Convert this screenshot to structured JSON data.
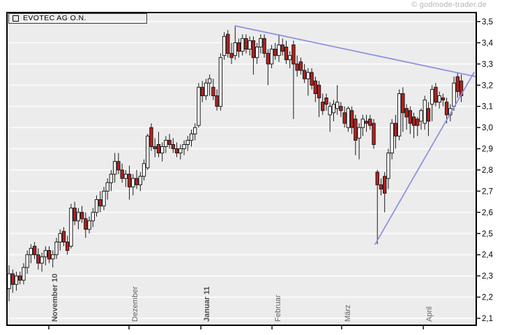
{
  "watermark": "© godmode-trader.de",
  "legend": {
    "title": "EVOTEC AG O.N."
  },
  "colors": {
    "plot_bg": "#ececec",
    "grid": "#fafafa",
    "border": "#000000",
    "up_fill": "#ffffff",
    "down_fill": "#b5211e",
    "candle_stroke": "#1a1a1a",
    "trendline": "#8f92e0",
    "month_label": "#666666",
    "month_label_bold": "#4d4d4d",
    "y_label": "#000000",
    "watermark": "#b6b6b6"
  },
  "chart_data": {
    "type": "candlestick",
    "title": "EVOTEC AG O.N.",
    "source": "godmode-trader.de",
    "y_axis": {
      "position": "right",
      "min": 2.1,
      "max": 3.5,
      "tick_step": 0.1,
      "labels": [
        "3,5",
        "3,4",
        "3,3",
        "3,2",
        "3,1",
        "3,0",
        "2,9",
        "2,8",
        "2,7",
        "2,6",
        "2,5",
        "2,4",
        "2,3",
        "2,2",
        "2,1"
      ]
    },
    "x_axis": {
      "months": [
        {
          "label": "November 10",
          "bold": true,
          "index": 10.9
        },
        {
          "label": "Dezember",
          "bold": false,
          "index": 32.9
        },
        {
          "label": "Januar 11",
          "bold": true,
          "index": 52.6
        },
        {
          "label": "Februar",
          "bold": false,
          "index": 72.1
        },
        {
          "label": "März",
          "bold": false,
          "index": 91.2
        },
        {
          "label": "April",
          "bold": false,
          "index": 113.6
        }
      ]
    },
    "grid": true,
    "candles": [
      [
        2.24,
        2.35,
        2.18,
        2.31
      ],
      [
        2.31,
        2.33,
        2.22,
        2.26
      ],
      [
        2.26,
        2.32,
        2.23,
        2.3
      ],
      [
        2.3,
        2.32,
        2.26,
        2.28
      ],
      [
        2.28,
        2.36,
        2.26,
        2.34
      ],
      [
        2.34,
        2.42,
        2.31,
        2.4
      ],
      [
        2.4,
        2.45,
        2.36,
        2.43
      ],
      [
        2.44,
        2.46,
        2.38,
        2.4
      ],
      [
        2.4,
        2.43,
        2.33,
        2.36
      ],
      [
        2.36,
        2.41,
        2.32,
        2.39
      ],
      [
        2.39,
        2.44,
        2.35,
        2.42
      ],
      [
        2.42,
        2.44,
        2.36,
        2.38
      ],
      [
        2.38,
        2.42,
        2.34,
        2.4
      ],
      [
        2.4,
        2.48,
        2.38,
        2.46
      ],
      [
        2.46,
        2.52,
        2.42,
        2.5
      ],
      [
        2.51,
        2.53,
        2.44,
        2.46
      ],
      [
        2.46,
        2.49,
        2.4,
        2.42
      ],
      [
        2.44,
        2.64,
        2.43,
        2.62
      ],
      [
        2.62,
        2.65,
        2.54,
        2.56
      ],
      [
        2.56,
        2.62,
        2.52,
        2.6
      ],
      [
        2.6,
        2.63,
        2.55,
        2.57
      ],
      [
        2.57,
        2.6,
        2.48,
        2.52
      ],
      [
        2.52,
        2.58,
        2.5,
        2.56
      ],
      [
        2.56,
        2.62,
        2.53,
        2.6
      ],
      [
        2.6,
        2.68,
        2.58,
        2.66
      ],
      [
        2.66,
        2.7,
        2.6,
        2.63
      ],
      [
        2.63,
        2.72,
        2.61,
        2.7
      ],
      [
        2.7,
        2.76,
        2.66,
        2.74
      ],
      [
        2.74,
        2.8,
        2.7,
        2.78
      ],
      [
        2.78,
        2.88,
        2.74,
        2.84
      ],
      [
        2.84,
        2.88,
        2.78,
        2.8
      ],
      [
        2.8,
        2.83,
        2.74,
        2.76
      ],
      [
        2.76,
        2.8,
        2.72,
        2.78
      ],
      [
        2.78,
        2.82,
        2.66,
        2.72
      ],
      [
        2.72,
        2.78,
        2.68,
        2.76
      ],
      [
        2.76,
        2.8,
        2.71,
        2.73
      ],
      [
        2.73,
        2.79,
        2.7,
        2.77
      ],
      [
        2.77,
        2.85,
        2.75,
        2.83
      ],
      [
        2.81,
        2.97,
        2.8,
        2.96
      ],
      [
        3.0,
        3.02,
        2.89,
        2.91
      ],
      [
        2.91,
        2.95,
        2.86,
        2.9
      ],
      [
        2.92,
        2.98,
        2.86,
        2.88
      ],
      [
        2.88,
        2.93,
        2.84,
        2.91
      ],
      [
        2.91,
        2.96,
        2.88,
        2.94
      ],
      [
        2.94,
        2.97,
        2.9,
        2.92
      ],
      [
        2.92,
        2.95,
        2.88,
        2.9
      ],
      [
        2.9,
        2.93,
        2.86,
        2.88
      ],
      [
        2.88,
        2.92,
        2.85,
        2.9
      ],
      [
        2.9,
        2.94,
        2.87,
        2.92
      ],
      [
        2.92,
        2.96,
        2.89,
        2.94
      ],
      [
        2.94,
        2.99,
        2.91,
        2.97
      ],
      [
        2.97,
        3.02,
        2.94,
        3.0
      ],
      [
        3.01,
        3.21,
        3.0,
        3.19
      ],
      [
        3.19,
        3.22,
        3.12,
        3.15
      ],
      [
        3.15,
        3.23,
        3.13,
        3.21
      ],
      [
        3.21,
        3.25,
        3.15,
        3.23
      ],
      [
        3.19,
        3.23,
        3.13,
        3.15
      ],
      [
        3.15,
        3.18,
        3.08,
        3.1
      ],
      [
        3.1,
        3.35,
        3.08,
        3.33
      ],
      [
        3.34,
        3.45,
        3.32,
        3.43
      ],
      [
        3.44,
        3.46,
        3.33,
        3.35
      ],
      [
        3.35,
        3.4,
        3.3,
        3.33
      ],
      [
        3.34,
        3.48,
        3.32,
        3.4
      ],
      [
        3.4,
        3.42,
        3.33,
        3.36
      ],
      [
        3.36,
        3.44,
        3.34,
        3.42
      ],
      [
        3.42,
        3.44,
        3.35,
        3.37
      ],
      [
        3.37,
        3.43,
        3.34,
        3.41
      ],
      [
        3.41,
        3.43,
        3.25,
        3.33
      ],
      [
        3.33,
        3.4,
        3.3,
        3.38
      ],
      [
        3.38,
        3.44,
        3.35,
        3.42
      ],
      [
        3.42,
        3.44,
        3.33,
        3.35
      ],
      [
        3.35,
        3.37,
        3.2,
        3.3
      ],
      [
        3.3,
        3.39,
        3.28,
        3.37
      ],
      [
        3.37,
        3.4,
        3.32,
        3.34
      ],
      [
        3.34,
        3.44,
        3.31,
        3.39
      ],
      [
        3.39,
        3.42,
        3.34,
        3.36
      ],
      [
        3.38,
        3.41,
        3.3,
        3.32
      ],
      [
        3.32,
        3.36,
        3.28,
        3.34
      ],
      [
        3.39,
        3.41,
        3.04,
        3.3
      ],
      [
        3.3,
        3.34,
        3.24,
        3.27
      ],
      [
        3.31,
        3.33,
        3.25,
        3.27
      ],
      [
        3.27,
        3.3,
        3.21,
        3.23
      ],
      [
        3.23,
        3.28,
        3.15,
        3.26
      ],
      [
        3.26,
        3.28,
        3.18,
        3.2
      ],
      [
        3.22,
        3.24,
        3.12,
        3.16
      ],
      [
        3.2,
        3.22,
        3.05,
        3.14
      ],
      [
        3.12,
        3.16,
        3.06,
        3.08
      ],
      [
        3.14,
        3.16,
        3.08,
        3.11
      ],
      [
        3.06,
        3.12,
        2.98,
        3.1
      ],
      [
        3.07,
        3.13,
        3.03,
        3.11
      ],
      [
        3.09,
        3.2,
        3.06,
        3.12
      ],
      [
        3.1,
        3.12,
        3.05,
        3.08
      ],
      [
        3.07,
        3.1,
        3.0,
        3.02
      ],
      [
        3.0,
        3.1,
        2.98,
        3.09
      ],
      [
        3.08,
        3.1,
        2.97,
        3.0
      ],
      [
        3.04,
        3.06,
        2.87,
        2.94
      ],
      [
        2.95,
        3.02,
        2.85,
        3.0
      ],
      [
        3.0,
        3.06,
        2.96,
        3.04
      ],
      [
        3.03,
        3.06,
        2.98,
        3.02
      ],
      [
        3.04,
        3.06,
        2.99,
        3.01
      ],
      [
        3.02,
        3.04,
        2.9,
        2.92
      ],
      [
        2.79,
        2.8,
        2.45,
        2.73
      ],
      [
        2.73,
        2.76,
        2.68,
        2.71
      ],
      [
        2.77,
        2.79,
        2.6,
        2.69
      ],
      [
        2.76,
        2.9,
        2.71,
        2.88
      ],
      [
        2.88,
        3.04,
        2.85,
        3.02
      ],
      [
        3.02,
        3.06,
        2.9,
        2.96
      ],
      [
        2.96,
        3.18,
        2.94,
        3.16
      ],
      [
        3.16,
        3.19,
        2.98,
        3.07
      ],
      [
        3.09,
        3.11,
        2.99,
        3.05
      ],
      [
        3.08,
        3.1,
        2.97,
        3.02
      ],
      [
        3.05,
        3.07,
        2.95,
        3.01
      ],
      [
        3.04,
        3.05,
        2.96,
        3.01
      ],
      [
        3.03,
        3.09,
        2.99,
        3.08
      ],
      [
        3.02,
        3.15,
        2.99,
        3.13
      ],
      [
        3.09,
        3.12,
        2.96,
        3.03
      ],
      [
        3.11,
        3.2,
        3.03,
        3.18
      ],
      [
        3.19,
        3.21,
        3.1,
        3.12
      ],
      [
        3.12,
        3.17,
        3.09,
        3.15
      ],
      [
        3.14,
        3.16,
        3.1,
        3.13
      ],
      [
        3.12,
        3.14,
        3.02,
        3.06
      ],
      [
        3.06,
        3.11,
        3.03,
        3.09
      ],
      [
        3.1,
        3.24,
        3.08,
        3.21
      ],
      [
        3.24,
        3.26,
        3.14,
        3.17
      ],
      [
        3.22,
        3.25,
        3.12,
        3.15
      ]
    ],
    "trendlines": [
      {
        "name": "descending-resistance",
        "from": {
          "index": 62,
          "price": 3.48
        },
        "to": {
          "index": 128.1,
          "price": 3.24
        }
      },
      {
        "name": "ascending-support",
        "from": {
          "index": 100.4,
          "price": 2.45
        },
        "to": {
          "index": 127.5,
          "price": 3.26
        }
      }
    ]
  }
}
